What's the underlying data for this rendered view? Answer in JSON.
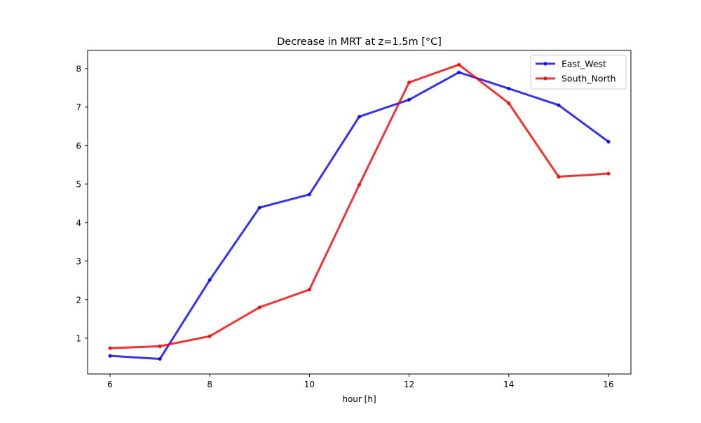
{
  "chart_data": {
    "type": "line",
    "title": "Decrease in MRT at z=1.5m [°C]",
    "xlabel": "hour [h]",
    "ylabel": "",
    "x": [
      6,
      7,
      8,
      9,
      10,
      11,
      12,
      13,
      14,
      15,
      16
    ],
    "xlim": [
      5.55,
      16.45
    ],
    "ylim": [
      0.07,
      8.47
    ],
    "x_ticks": [
      6,
      8,
      10,
      12,
      14,
      16
    ],
    "y_ticks": [
      1,
      2,
      3,
      4,
      5,
      6,
      7,
      8
    ],
    "grid": false,
    "legend_position": "top-right",
    "series": [
      {
        "name": "East_West",
        "color": "#0000ee",
        "values": [
          0.54,
          0.46,
          2.51,
          4.39,
          4.73,
          6.75,
          7.19,
          7.9,
          7.48,
          7.05,
          6.1
        ]
      },
      {
        "name": "South_North",
        "color": "#ee0000",
        "values": [
          0.74,
          0.79,
          1.05,
          1.8,
          2.26,
          4.98,
          7.64,
          8.1,
          7.1,
          5.19,
          5.27
        ]
      }
    ]
  }
}
